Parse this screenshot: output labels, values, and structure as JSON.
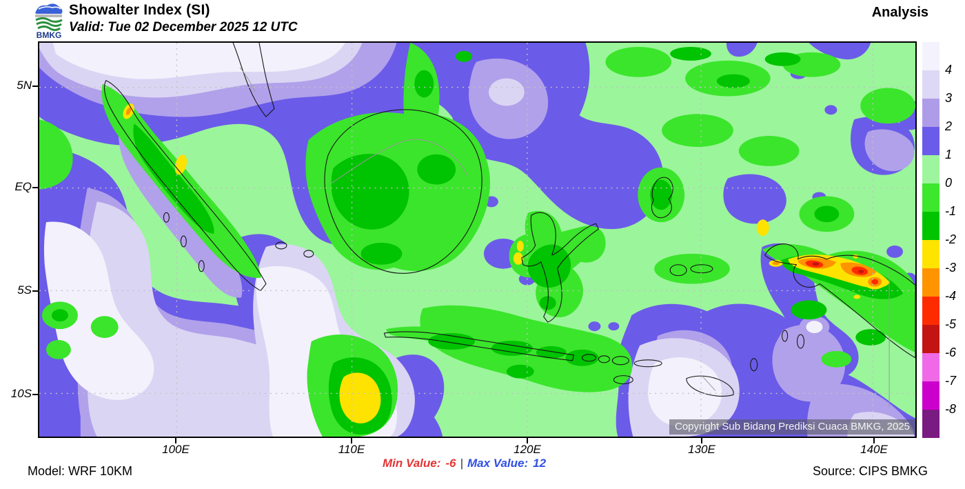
{
  "header": {
    "title": "Showalter Index (SI)",
    "valid": "Valid: Tue 02 December 2025 12 UTC",
    "mode_label": "Analysis",
    "logo_text": "BMKG"
  },
  "map": {
    "lat_labels": [
      "5N",
      "EQ",
      "5S",
      "10S"
    ],
    "lon_labels": [
      "100E",
      "110E",
      "120E",
      "130E",
      "140E"
    ],
    "copyright": "Copyright Sub Bidang Prediksi Cuaca BMKG, 2025"
  },
  "colorbar": {
    "tick_labels": [
      "4",
      "3",
      "2",
      "1",
      "0",
      "-1",
      "-2",
      "-3",
      "-4",
      "-5",
      "-6",
      "-7",
      "-8"
    ],
    "segment_colors_top_to_bottom": [
      "#F4F2FC",
      "#DDD8F5",
      "#AF9CE9",
      "#6B5BE9",
      "#9DF59D",
      "#3CE72C",
      "#00C400",
      "#FFE400",
      "#FF9300",
      "#FF2B00",
      "#C31414",
      "#F06AE8",
      "#CC00CC",
      "#7A1B82"
    ]
  },
  "footer": {
    "model": "Model: WRF 10KM",
    "min_label": "Min Value:",
    "min_value": "-6",
    "separator": "|",
    "max_label": "Max Value:",
    "max_value": "12",
    "source": "Source: CIPS BMKG"
  },
  "colors": {
    "min_value_color": "#E33535",
    "max_value_color": "#2E4FE3",
    "map_base_green": "#9BF59B",
    "bright_green": "#3BE52B",
    "mid_green": "#00C301",
    "blue_violet": "#6B5BE9",
    "light_purple": "#B1A1EA",
    "pale_lavender": "#DBD5F4",
    "near_white": "#F3F1FB",
    "yellow": "#FFE300",
    "orange": "#FF9300",
    "red": "#FF2B00",
    "dark_red": "#C31414"
  }
}
